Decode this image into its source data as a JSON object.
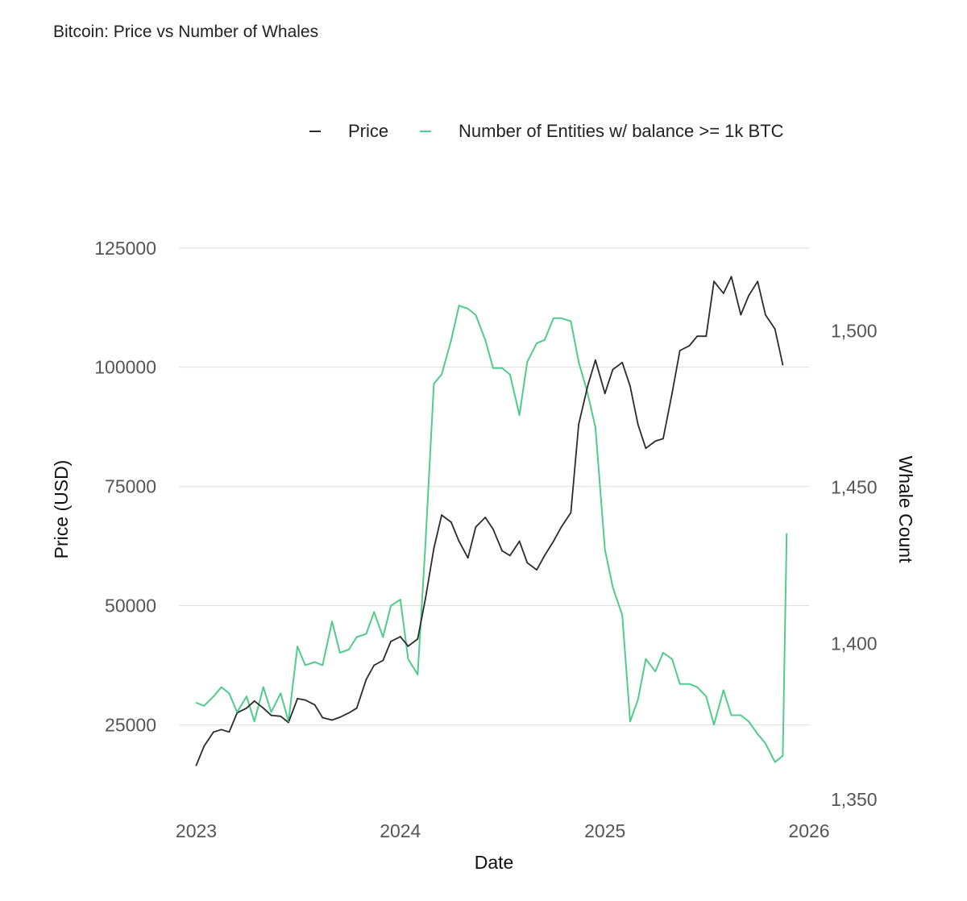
{
  "title": "Bitcoin: Price vs Number of Whales",
  "colors": {
    "price": "#2b2b2b",
    "whales": "#4fcc8c",
    "grid": "#dddddd"
  },
  "chart_data": {
    "type": "line",
    "title": "Bitcoin: Price vs Number of Whales",
    "xlabel": "Date",
    "ylabel": "Price (USD)",
    "y2label": "Whale Count",
    "x_ticks": [
      "2023",
      "2024",
      "2025",
      "2026"
    ],
    "xlim": [
      "2022-12-01",
      "2026-01-01"
    ],
    "ylim": [
      8000,
      128000
    ],
    "y_ticks": [
      "25000",
      "50000",
      "75000",
      "100000",
      "125000"
    ],
    "y2lim": [
      1348,
      1531
    ],
    "y2_ticks": [
      "1,350",
      "1,400",
      "1,450",
      "1,500"
    ],
    "grid": true,
    "legend_position": "top",
    "series": [
      {
        "name": "Price",
        "axis": "left",
        "x": [
          "2023-01-01",
          "2023-01-15",
          "2023-02-01",
          "2023-02-15",
          "2023-03-01",
          "2023-03-15",
          "2023-04-01",
          "2023-04-15",
          "2023-05-01",
          "2023-05-15",
          "2023-06-01",
          "2023-06-15",
          "2023-07-01",
          "2023-07-15",
          "2023-08-01",
          "2023-08-15",
          "2023-09-01",
          "2023-09-15",
          "2023-10-01",
          "2023-10-15",
          "2023-11-01",
          "2023-11-15",
          "2023-12-01",
          "2023-12-15",
          "2024-01-01",
          "2024-01-15",
          "2024-02-01",
          "2024-02-15",
          "2024-03-01",
          "2024-03-15",
          "2024-04-01",
          "2024-04-15",
          "2024-05-01",
          "2024-05-15",
          "2024-06-01",
          "2024-06-15",
          "2024-07-01",
          "2024-07-15",
          "2024-08-01",
          "2024-08-15",
          "2024-09-01",
          "2024-09-15",
          "2024-10-01",
          "2024-10-15",
          "2024-11-01",
          "2024-11-15",
          "2024-12-01",
          "2024-12-15",
          "2025-01-01",
          "2025-01-15",
          "2025-02-01",
          "2025-02-15",
          "2025-03-01",
          "2025-03-15",
          "2025-04-01",
          "2025-04-15",
          "2025-05-01",
          "2025-05-15",
          "2025-06-01",
          "2025-06-15",
          "2025-07-01",
          "2025-07-15",
          "2025-08-01",
          "2025-08-15",
          "2025-09-01",
          "2025-09-15",
          "2025-10-01",
          "2025-10-15",
          "2025-11-01",
          "2025-11-15"
        ],
        "values": [
          16500,
          20500,
          23500,
          24000,
          23500,
          27500,
          28500,
          30000,
          28500,
          27000,
          26800,
          25500,
          30500,
          30200,
          29200,
          26500,
          26000,
          26600,
          27500,
          28500,
          34500,
          37500,
          38500,
          42500,
          43500,
          41500,
          43000,
          51500,
          62000,
          69000,
          67500,
          63500,
          60000,
          66500,
          68500,
          66000,
          61500,
          60500,
          63500,
          59000,
          57500,
          60500,
          63500,
          66500,
          69500,
          88000,
          96000,
          101500,
          94500,
          99500,
          101000,
          96000,
          88000,
          83000,
          84500,
          85000,
          94500,
          103500,
          104500,
          106500,
          106500,
          118000,
          115500,
          119000,
          111000,
          115000,
          118000,
          111000,
          108000,
          100500
        ]
      },
      {
        "name": "Number of Entities w/ balance >= 1k BTC",
        "axis": "right",
        "x": [
          "2023-01-01",
          "2023-01-15",
          "2023-02-01",
          "2023-02-15",
          "2023-03-01",
          "2023-03-15",
          "2023-04-01",
          "2023-04-15",
          "2023-05-01",
          "2023-05-15",
          "2023-06-01",
          "2023-06-15",
          "2023-07-01",
          "2023-07-15",
          "2023-08-01",
          "2023-08-15",
          "2023-09-01",
          "2023-09-15",
          "2023-10-01",
          "2023-10-15",
          "2023-11-01",
          "2023-11-15",
          "2023-12-01",
          "2023-12-15",
          "2024-01-01",
          "2024-01-15",
          "2024-02-01",
          "2024-02-15",
          "2024-03-01",
          "2024-03-15",
          "2024-04-01",
          "2024-04-15",
          "2024-05-01",
          "2024-05-15",
          "2024-06-01",
          "2024-06-15",
          "2024-07-01",
          "2024-07-15",
          "2024-08-01",
          "2024-08-15",
          "2024-09-01",
          "2024-09-15",
          "2024-10-01",
          "2024-10-15",
          "2024-11-01",
          "2024-11-15",
          "2024-12-01",
          "2024-12-15",
          "2025-01-01",
          "2025-01-15",
          "2025-02-01",
          "2025-02-15",
          "2025-03-01",
          "2025-03-15",
          "2025-04-01",
          "2025-04-15",
          "2025-05-01",
          "2025-05-15",
          "2025-06-01",
          "2025-06-15",
          "2025-07-01",
          "2025-07-15",
          "2025-08-01",
          "2025-08-15",
          "2025-09-01",
          "2025-09-15",
          "2025-10-01",
          "2025-10-15",
          "2025-11-01",
          "2025-11-15",
          "2025-11-22"
        ],
        "values": [
          1381,
          1380,
          1383,
          1386,
          1384,
          1378,
          1383,
          1375,
          1386,
          1378,
          1384,
          1375,
          1399,
          1393,
          1394,
          1393,
          1407,
          1397,
          1398,
          1402,
          1403,
          1410,
          1402,
          1412,
          1414,
          1395,
          1390,
          1432,
          1483,
          1486,
          1497,
          1508,
          1507,
          1505,
          1497,
          1488,
          1488,
          1486,
          1473,
          1490,
          1496,
          1497,
          1504,
          1504,
          1503,
          1490,
          1480,
          1469,
          1430,
          1418,
          1409,
          1375,
          1382,
          1395,
          1391,
          1397,
          1395,
          1387,
          1387,
          1386,
          1383,
          1374,
          1385,
          1377,
          1377,
          1375,
          1371,
          1368,
          1362,
          1364,
          1435
        ]
      }
    ]
  }
}
